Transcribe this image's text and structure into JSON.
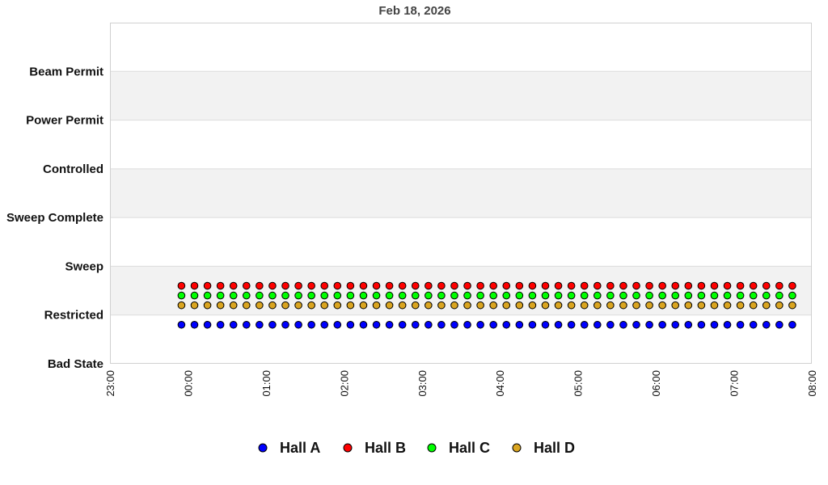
{
  "chart_data": {
    "type": "scatter",
    "title": "Feb 18, 2026",
    "y_categories": [
      "Bad State",
      "Restricted",
      "Sweep",
      "Sweep Complete",
      "Controlled",
      "Power Permit",
      "Beam Permit"
    ],
    "ylim": [
      0,
      7
    ],
    "x_ticks": [
      "23:00",
      "00:00",
      "01:00",
      "02:00",
      "03:00",
      "04:00",
      "05:00",
      "06:00",
      "07:00",
      "08:00"
    ],
    "xlim": [
      "23:00",
      "08:00"
    ],
    "grid": true,
    "banded_background": true,
    "legend_position": "bottom",
    "x": [
      "23:55",
      "00:05",
      "00:15",
      "00:25",
      "00:35",
      "00:45",
      "00:55",
      "01:05",
      "01:15",
      "01:25",
      "01:35",
      "01:45",
      "01:55",
      "02:05",
      "02:15",
      "02:25",
      "02:35",
      "02:45",
      "02:55",
      "03:05",
      "03:15",
      "03:25",
      "03:35",
      "03:45",
      "03:55",
      "04:05",
      "04:15",
      "04:25",
      "04:35",
      "04:45",
      "04:55",
      "05:05",
      "05:15",
      "05:25",
      "05:35",
      "05:45",
      "05:55",
      "06:05",
      "06:15",
      "06:25",
      "06:35",
      "06:45",
      "06:55",
      "07:05",
      "07:15",
      "07:25",
      "07:35",
      "07:45"
    ],
    "series": [
      {
        "name": "Hall A",
        "color": "#0000ff",
        "y": 0.8
      },
      {
        "name": "Hall B",
        "color": "#ff0000",
        "y": 1.6
      },
      {
        "name": "Hall C",
        "color": "#00ff00",
        "y": 1.4
      },
      {
        "name": "Hall D",
        "color": "#daa520",
        "y": 1.2
      }
    ]
  }
}
